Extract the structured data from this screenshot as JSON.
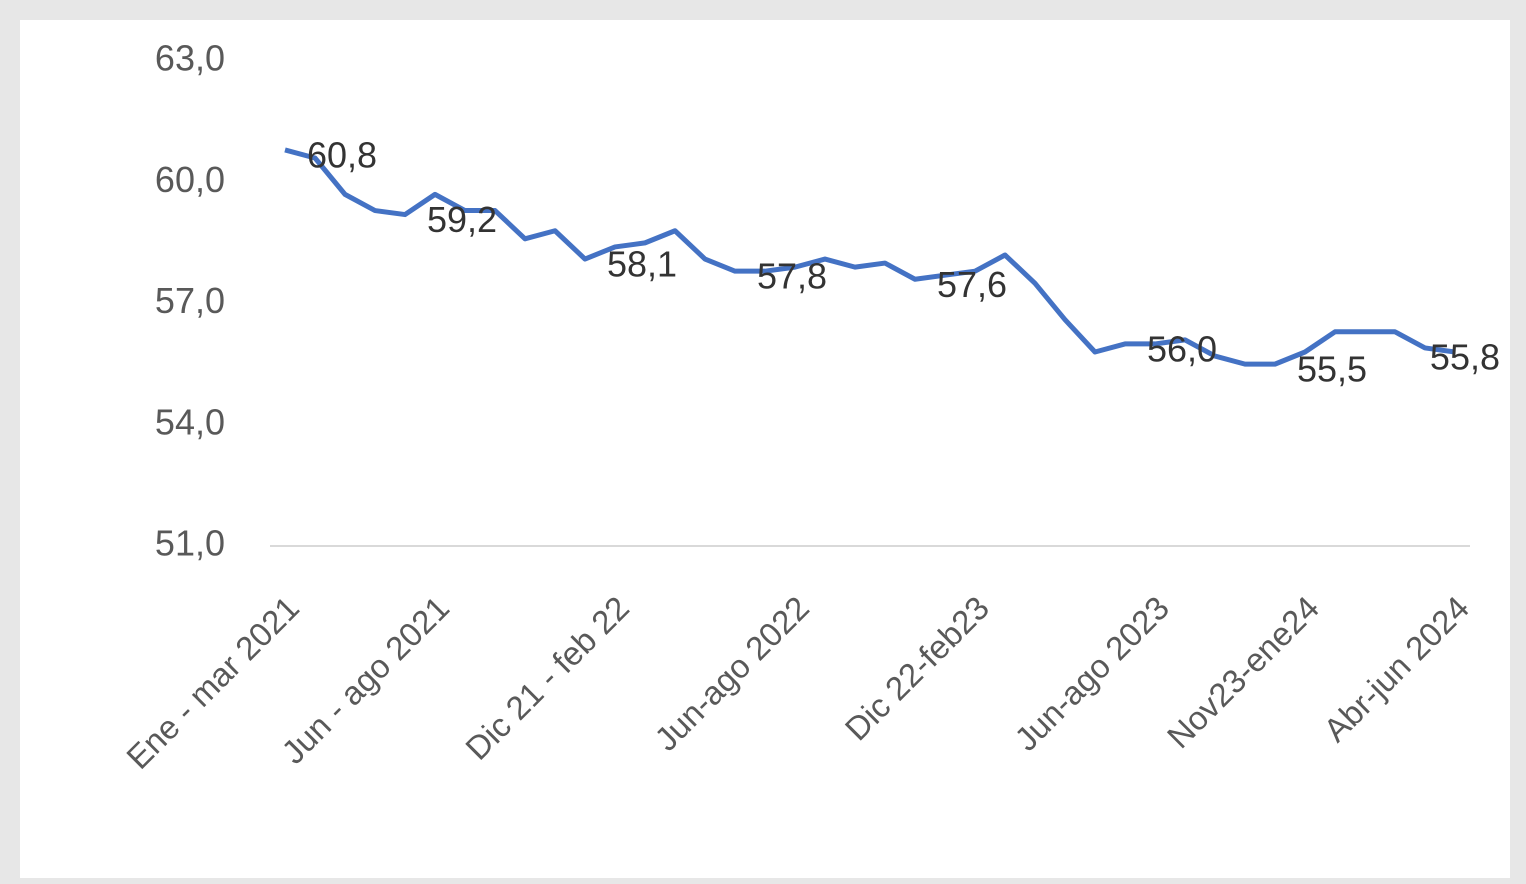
{
  "chart_data": {
    "type": "line",
    "categories": [
      "Ene - mar 2021",
      null,
      null,
      null,
      null,
      "Jun - ago 2021",
      null,
      null,
      null,
      null,
      null,
      "Dic 21 - feb 22",
      null,
      null,
      null,
      null,
      null,
      "Jun-ago 2022",
      null,
      null,
      null,
      null,
      null,
      "Dic 22-feb23",
      null,
      null,
      null,
      null,
      null,
      "Jun-ago 2023",
      null,
      null,
      null,
      null,
      "Nov23-ene24",
      null,
      null,
      null,
      null,
      "Abr-jun 2024"
    ],
    "values": [
      60.8,
      60.6,
      59.7,
      59.3,
      59.2,
      59.7,
      59.3,
      59.3,
      58.6,
      58.8,
      58.1,
      58.4,
      58.5,
      58.8,
      58.1,
      57.8,
      57.8,
      57.9,
      58.1,
      57.9,
      58.0,
      57.6,
      57.7,
      57.8,
      58.2,
      57.5,
      56.6,
      55.8,
      56.0,
      56.0,
      56.1,
      55.7,
      55.5,
      55.5,
      55.8,
      56.3,
      56.3,
      56.3,
      55.9,
      55.8
    ],
    "value_labels": [
      "60,8",
      null,
      null,
      null,
      "59,2",
      null,
      null,
      null,
      null,
      null,
      "58,1",
      null,
      null,
      null,
      null,
      "57,8",
      null,
      null,
      null,
      null,
      null,
      "57,6",
      null,
      null,
      null,
      null,
      null,
      null,
      "56,0",
      null,
      null,
      null,
      null,
      "55,5",
      null,
      null,
      null,
      null,
      null,
      "55,8"
    ],
    "color": "#4472c4",
    "ylim": [
      51,
      63
    ],
    "yticks": [
      {
        "value": 51,
        "label": "51,0"
      },
      {
        "value": 54,
        "label": "54,0"
      },
      {
        "value": 57,
        "label": "57,0"
      },
      {
        "value": 60,
        "label": "60,0"
      },
      {
        "value": 63,
        "label": "63,0"
      }
    ]
  }
}
